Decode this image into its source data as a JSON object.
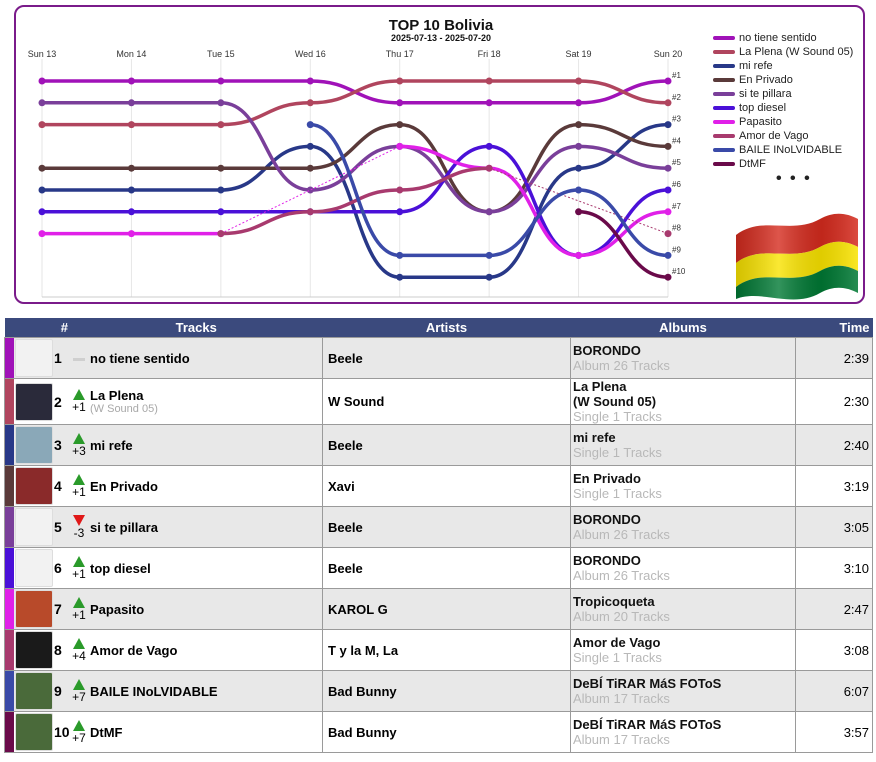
{
  "chart_data": {
    "type": "line",
    "title": "TOP 10 Bolivia",
    "subtitle": "2025-07-13 - 2025-07-20",
    "x": [
      "Sun 13",
      "Mon 14",
      "Tue 15",
      "Wed 16",
      "Thu 17",
      "Fri 18",
      "Sat 19",
      "Sun 20"
    ],
    "rank_labels": [
      "#1",
      "#2",
      "#3",
      "#4",
      "#5",
      "#6",
      "#7",
      "#8",
      "#9",
      "#10"
    ],
    "y_axis": "rank (1 = top), inverted",
    "series": [
      {
        "name": "no tiene sentido",
        "color": "#a012b8",
        "values": [
          1,
          1,
          1,
          1,
          2,
          2,
          2,
          1
        ]
      },
      {
        "name": "La Plena (W Sound 05)",
        "color": "#b0455e",
        "values": [
          3,
          3,
          3,
          2,
          1,
          1,
          1,
          2
        ]
      },
      {
        "name": "mi refe",
        "color": "#283888",
        "values": [
          6,
          6,
          6,
          4,
          10,
          10,
          5,
          3
        ]
      },
      {
        "name": "En Privado",
        "color": "#5a3a3a",
        "values": [
          5,
          5,
          5,
          5,
          3,
          7,
          3,
          4
        ]
      },
      {
        "name": "si te pillara",
        "color": "#7a3f9a",
        "values": [
          2,
          2,
          2,
          6,
          4,
          7,
          4,
          5
        ]
      },
      {
        "name": "top diesel",
        "color": "#4a10d8",
        "values": [
          7,
          7,
          7,
          7,
          7,
          4,
          9,
          6
        ]
      },
      {
        "name": "Papasito",
        "color": "#e020e8",
        "values": [
          8,
          8,
          8,
          null,
          4,
          5,
          9,
          7
        ]
      },
      {
        "name": "Amor de Vago",
        "color": "#a83a6e",
        "values": [
          null,
          null,
          8,
          7,
          6,
          5,
          null,
          8
        ]
      },
      {
        "name": "BAILE INoLVIDABLE",
        "color": "#3a4aa8",
        "values": [
          null,
          null,
          null,
          3,
          9,
          9,
          6,
          9
        ]
      },
      {
        "name": "DtMF",
        "color": "#6a0a4a",
        "values": [
          null,
          null,
          null,
          null,
          null,
          null,
          7,
          10
        ]
      }
    ],
    "legend": "right",
    "grid": true
  },
  "table": {
    "headers": {
      "num": "#",
      "tracks": "Tracks",
      "artists": "Artists",
      "albums": "Albums",
      "time": "Time"
    },
    "rows": [
      {
        "rank": "1",
        "move": "same",
        "delta": "",
        "track": "no tiene sentido",
        "track_sub": "",
        "artist": "Beele",
        "album": "BORONDO",
        "album_sub": "Album 26 Tracks",
        "time": "2:39",
        "color": "#a012b8",
        "cover": "#f2f2f2"
      },
      {
        "rank": "2",
        "move": "up",
        "delta": "+1",
        "track": "La Plena",
        "track_sub": "(W Sound 05)",
        "artist": "W Sound",
        "album": "La Plena\n(W Sound 05)",
        "album_sub": "Single 1 Tracks",
        "time": "2:30",
        "color": "#b0455e",
        "cover": "#2a2a3a"
      },
      {
        "rank": "3",
        "move": "up",
        "delta": "+3",
        "track": "mi refe",
        "track_sub": "",
        "artist": "Beele",
        "album": "mi refe",
        "album_sub": "Single 1 Tracks",
        "time": "2:40",
        "color": "#283888",
        "cover": "#8aa8b8"
      },
      {
        "rank": "4",
        "move": "up",
        "delta": "+1",
        "track": "En Privado",
        "track_sub": "",
        "artist": "Xavi",
        "album": "En Privado",
        "album_sub": "Single 1 Tracks",
        "time": "3:19",
        "color": "#5a3a3a",
        "cover": "#8a2a2a"
      },
      {
        "rank": "5",
        "move": "down",
        "delta": "-3",
        "track": "si te pillara",
        "track_sub": "",
        "artist": "Beele",
        "album": "BORONDO",
        "album_sub": "Album 26 Tracks",
        "time": "3:05",
        "color": "#7a3f9a",
        "cover": "#f2f2f2"
      },
      {
        "rank": "6",
        "move": "up",
        "delta": "+1",
        "track": "top diesel",
        "track_sub": "",
        "artist": "Beele",
        "album": "BORONDO",
        "album_sub": "Album 26 Tracks",
        "time": "3:10",
        "color": "#4a10d8",
        "cover": "#f2f2f2"
      },
      {
        "rank": "7",
        "move": "up",
        "delta": "+1",
        "track": "Papasito",
        "track_sub": "",
        "artist": "KAROL G",
        "album": "Tropicoqueta",
        "album_sub": "Album 20 Tracks",
        "time": "2:47",
        "color": "#e020e8",
        "cover": "#b84a2a"
      },
      {
        "rank": "8",
        "move": "up",
        "delta": "+4",
        "track": "Amor de Vago",
        "track_sub": "",
        "artist": "T y la M, La",
        "album": "Amor de Vago",
        "album_sub": "Single 1 Tracks",
        "time": "3:08",
        "color": "#a83a6e",
        "cover": "#1a1a1a"
      },
      {
        "rank": "9",
        "move": "up",
        "delta": "+7",
        "track": "BAILE INoLVIDABLE",
        "track_sub": "",
        "artist": "Bad Bunny",
        "album": "DeBÍ TiRAR MáS FOToS",
        "album_sub": "Album 17 Tracks",
        "time": "6:07",
        "color": "#3a4aa8",
        "cover": "#4a6a3a"
      },
      {
        "rank": "10",
        "move": "up",
        "delta": "+7",
        "track": "DtMF",
        "track_sub": "",
        "artist": "Bad Bunny",
        "album": "DeBÍ TiRAR MáS FOToS",
        "album_sub": "Album 17 Tracks",
        "time": "3:57",
        "color": "#6a0a4a",
        "cover": "#4a6a3a"
      }
    ]
  },
  "legend_more": "• • •",
  "colors": {
    "header_bg": "#3b4a7d",
    "frame": "#7a1b8a",
    "up": "#2a9a2a",
    "down": "#e01818"
  },
  "icons": {
    "flag": "bolivia-flag-icon",
    "up": "arrow-up-icon",
    "down": "arrow-down-icon",
    "same": "no-change-icon"
  }
}
